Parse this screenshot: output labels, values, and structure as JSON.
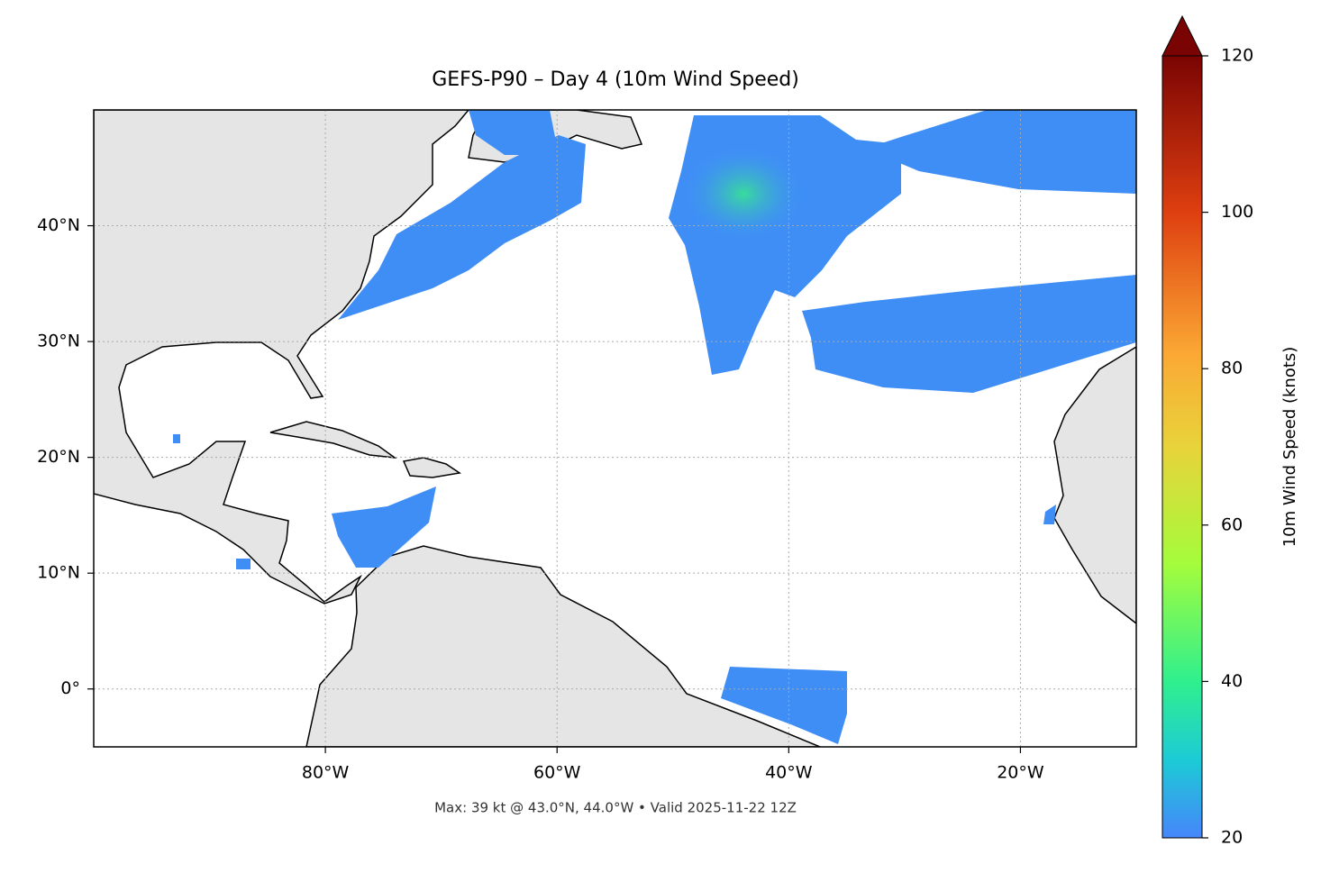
{
  "chart_data": {
    "type": "map",
    "title": "GEFS-P90 – Day 4 (10m Wind Speed)",
    "annotation": "Max: 39 kt @ 43.0°N, 44.0°W • Valid 2025-11-22 12Z",
    "xlim": [
      -100,
      -10
    ],
    "ylim": [
      -5,
      50
    ],
    "xticks": [
      {
        "value": -80,
        "label": "80°W"
      },
      {
        "value": -60,
        "label": "60°W"
      },
      {
        "value": -40,
        "label": "40°W"
      },
      {
        "value": -20,
        "label": "20°W"
      }
    ],
    "yticks": [
      {
        "value": 0,
        "label": "0°"
      },
      {
        "value": 10,
        "label": "10°N"
      },
      {
        "value": 20,
        "label": "20°N"
      },
      {
        "value": 30,
        "label": "30°N"
      },
      {
        "value": 40,
        "label": "40°N"
      }
    ],
    "grid": true,
    "colorbar": {
      "label": "10m Wind Speed (knots)",
      "lim": [
        20,
        120
      ],
      "ticks": [
        20,
        40,
        60,
        80,
        100,
        120
      ],
      "extend": "max"
    }
  }
}
